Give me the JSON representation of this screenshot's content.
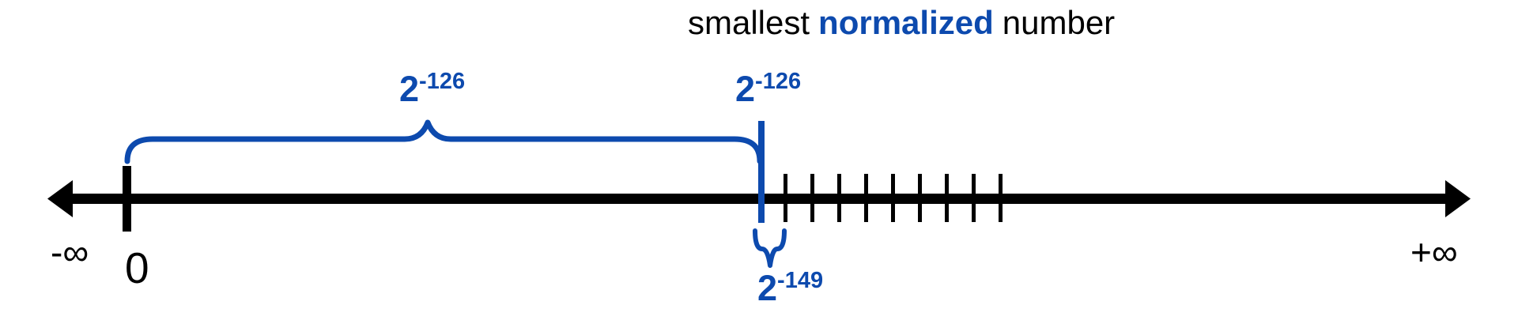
{
  "title": {
    "prefix": "smallest",
    "emphasis": "normalized",
    "suffix": "number"
  },
  "labels": {
    "neg_infinity": "-∞",
    "zero": "0",
    "pos_infinity": "+∞",
    "subnormal_range_label": {
      "base": "2",
      "exponent": "-126"
    },
    "smallest_normalized_label": {
      "base": "2",
      "exponent": "-126"
    },
    "gap_label": {
      "base": "2",
      "exponent": "-149"
    }
  },
  "number_line": {
    "normalized_tick_count": 9
  },
  "colors": {
    "accent": "#0d4aae",
    "ink": "#000000",
    "background": "#ffffff"
  }
}
